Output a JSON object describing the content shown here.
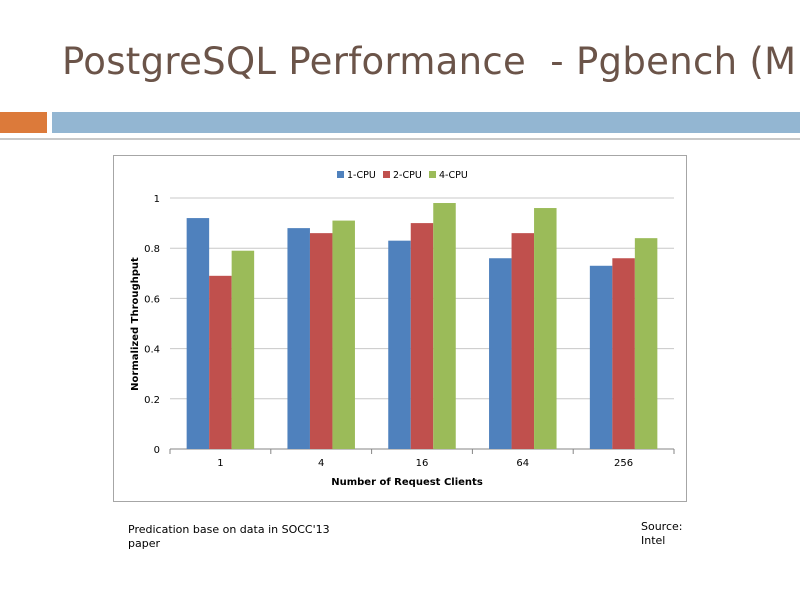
{
  "slide": {
    "title": "PostgreSQL Performance  - Pgbench (MP)",
    "note": "Predication base on data in SOCC'13 paper",
    "source_label": "Source:",
    "source_value": "Intel"
  },
  "colors": {
    "series": [
      "#4f81bd",
      "#c0504d",
      "#9bbb59"
    ]
  },
  "chart_data": {
    "type": "bar",
    "title": "",
    "xlabel": "Number  of Request Clients",
    "ylabel": "Normalized Throughput",
    "categories": [
      "1",
      "4",
      "16",
      "64",
      "256"
    ],
    "ylim": [
      0,
      1
    ],
    "yticks": [
      "0",
      "0.2",
      "0.4",
      "0.6",
      "0.8",
      "1"
    ],
    "yticks_values": [
      0,
      0.2,
      0.4,
      0.6,
      0.8,
      1
    ],
    "grid": true,
    "legend": "top",
    "series": [
      {
        "name": "1-CPU",
        "values": [
          0.92,
          0.88,
          0.83,
          0.76,
          0.73
        ]
      },
      {
        "name": "2-CPU",
        "values": [
          0.69,
          0.86,
          0.9,
          0.86,
          0.76
        ]
      },
      {
        "name": "4-CPU",
        "values": [
          0.79,
          0.91,
          0.98,
          0.96,
          0.84
        ]
      }
    ]
  }
}
